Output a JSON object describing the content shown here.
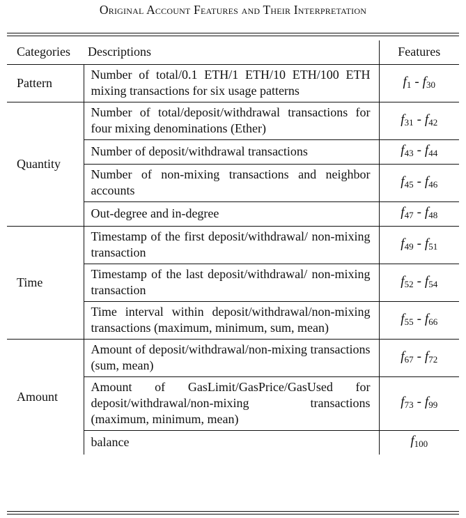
{
  "caption": "Original Account Features and Their Interpretation",
  "headers": {
    "categories": "Categories",
    "descriptions": "Descriptions",
    "features": "Features"
  },
  "rows": [
    {
      "category": "Pattern",
      "description": "Number of total/0.1 ETH/1 ETH/10 ETH/100 ETH mixing transactions for six usage patterns",
      "f_from": "f",
      "f_from_idx": "1",
      "f_to": "f",
      "f_to_idx": "30"
    },
    {
      "category": "Quantity",
      "description": "Number of total/deposit/withdrawal transactions for four mixing denominations (Ether)",
      "f_from": "f",
      "f_from_idx": "31",
      "f_to": "f",
      "f_to_idx": "42"
    },
    {
      "category": "",
      "description": "Number of deposit/withdrawal transactions",
      "f_from": "f",
      "f_from_idx": "43",
      "f_to": "f",
      "f_to_idx": "44"
    },
    {
      "category": "",
      "description": "Number of non-mixing transactions and neighbor accounts",
      "f_from": "f",
      "f_from_idx": "45",
      "f_to": "f",
      "f_to_idx": "46"
    },
    {
      "category": "",
      "description": "Out-degree and in-degree",
      "f_from": "f",
      "f_from_idx": "47",
      "f_to": "f",
      "f_to_idx": "48"
    },
    {
      "category": "Time",
      "description": "Timestamp of the first deposit/withdrawal/ non-mixing transaction",
      "f_from": "f",
      "f_from_idx": "49",
      "f_to": "f",
      "f_to_idx": "51"
    },
    {
      "category": "",
      "description": "Timestamp of the last deposit/withdrawal/ non-mixing transaction",
      "f_from": "f",
      "f_from_idx": "52",
      "f_to": "f",
      "f_to_idx": "54"
    },
    {
      "category": "",
      "description": "Time interval within deposit/withdrawal/non-mixing transactions (maximum, minimum, sum, mean)",
      "f_from": "f",
      "f_from_idx": "55",
      "f_to": "f",
      "f_to_idx": "66"
    },
    {
      "category": "Amount",
      "description": "Amount of deposit/withdrawal/non-mixing transactions (sum, mean)",
      "f_from": "f",
      "f_from_idx": "67",
      "f_to": "f",
      "f_to_idx": "72"
    },
    {
      "category": "",
      "description": "Amount of GasLimit/GasPrice/GasUsed for deposit/withdrawal/non-mixing transactions (maximum, minimum, mean)",
      "f_from": "f",
      "f_from_idx": "73",
      "f_to": "f",
      "f_to_idx": "99"
    },
    {
      "category": "",
      "description": "balance",
      "f_from": "f",
      "f_from_idx": "100",
      "f_to": "",
      "f_to_idx": ""
    }
  ]
}
